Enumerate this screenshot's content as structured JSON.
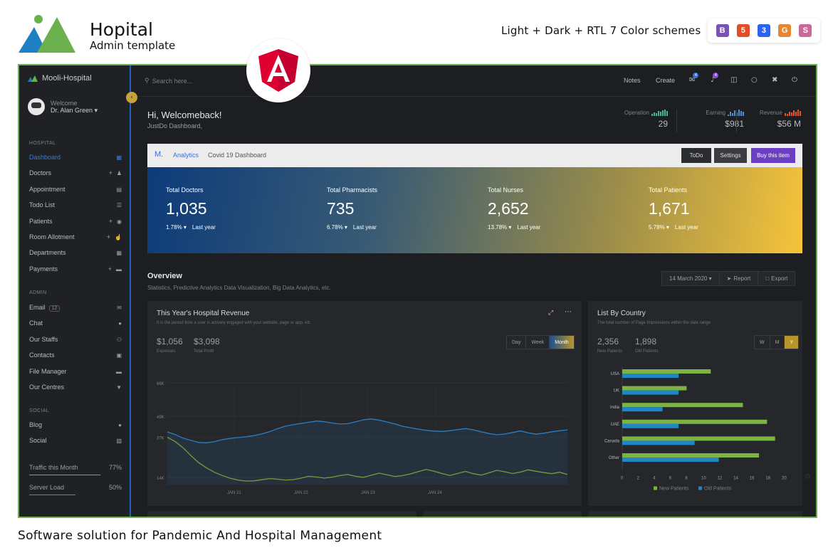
{
  "promo": {
    "brand_title": "Hopital",
    "brand_subtitle": "Admin template",
    "tagline": "Light + Dark + RTL 7 Color schemes",
    "tech_icons": [
      {
        "name": "bootstrap-icon",
        "glyph": "B",
        "color": "#7952b3"
      },
      {
        "name": "html5-icon",
        "glyph": "5",
        "color": "#e44d26"
      },
      {
        "name": "css3-icon",
        "glyph": "3",
        "color": "#2965f1"
      },
      {
        "name": "grunt-icon",
        "glyph": "G",
        "color": "#e48632"
      },
      {
        "name": "sass-icon",
        "glyph": "S",
        "color": "#cd6799"
      }
    ],
    "footer_text": "Software solution for Pandemic And Hospital Management"
  },
  "sidebar": {
    "brand": "Mooli-Hospital",
    "welcome_label": "Welcome",
    "user_name": "Dr. Alan Green ▾",
    "sections": {
      "hospital": "HOSPITAL",
      "admin": "ADMIN",
      "social": "SOCIAL"
    },
    "hospital_items": [
      {
        "label": "Dashboard",
        "icon": "dashboard-icon",
        "plus": false,
        "active": true
      },
      {
        "label": "Doctors",
        "icon": "doctor-icon",
        "plus": true,
        "active": false
      },
      {
        "label": "Appointment",
        "icon": "calendar-icon",
        "plus": false,
        "active": false
      },
      {
        "label": "Todo List",
        "icon": "list-icon",
        "plus": false,
        "active": false
      },
      {
        "label": "Patients",
        "icon": "user-circle-icon",
        "plus": true,
        "active": false
      },
      {
        "label": "Room Allotment",
        "icon": "thumbs-up-icon",
        "plus": true,
        "active": false
      },
      {
        "label": "Departments",
        "icon": "table-icon",
        "plus": false,
        "active": false
      },
      {
        "label": "Payments",
        "icon": "card-icon",
        "plus": true,
        "active": false
      }
    ],
    "admin_items": [
      {
        "label": "Email",
        "badge": "12",
        "icon": "mail-icon"
      },
      {
        "label": "Chat",
        "icon": "chat-icon"
      },
      {
        "label": "Our Staffs",
        "icon": "users-icon"
      },
      {
        "label": "Contacts",
        "icon": "contact-icon"
      },
      {
        "label": "File Manager",
        "icon": "folder-icon"
      },
      {
        "label": "Our Centres",
        "icon": "map-pin-icon"
      }
    ],
    "social_items": [
      {
        "label": "Blog",
        "icon": "globe-icon"
      },
      {
        "label": "Social",
        "icon": "share-icon"
      }
    ],
    "stats": [
      {
        "label": "Traffic this Month",
        "value": "77%",
        "percent": 77,
        "color": "#6ab04c"
      },
      {
        "label": "Server Load",
        "value": "50%",
        "percent": 50,
        "color": "#e4572e"
      }
    ]
  },
  "topbar": {
    "search_placeholder": "Search here...",
    "notes": "Notes",
    "create": "Create",
    "mail_badge": "4",
    "bell_badge": "4"
  },
  "greeting": {
    "title": "Hi, Welcomeback!",
    "subtitle": "JustDo Dashboard,"
  },
  "kpis": [
    {
      "label": "Operation",
      "value": "29",
      "color": "#4ab39d"
    },
    {
      "label": "Earning",
      "value": "$981",
      "color": "#4a90d9"
    },
    {
      "label": "Revenue",
      "value": "$56 M",
      "color": "#e4572e"
    }
  ],
  "hero": {
    "logo": "M.",
    "tab_active": "Analytics",
    "tab_other": "Covid 19 Dashboard",
    "btn_todo": "ToDo",
    "btn_settings": "Settings",
    "btn_buy": "Buy this item",
    "totals": [
      {
        "label": "Total Doctors",
        "value": "1,035",
        "change": "1.78% ▾",
        "period": "Last year"
      },
      {
        "label": "Total Pharmacists",
        "value": "735",
        "change": "6.78% ▾",
        "period": "Last year"
      },
      {
        "label": "Total Nurses",
        "value": "2,652",
        "change": "13.78% ▾",
        "period": "Last year"
      },
      {
        "label": "Total Patients",
        "value": "1,671",
        "change": "5.78% ▾",
        "period": "Last year"
      }
    ]
  },
  "overview": {
    "title": "Overview",
    "subtitle": "Statistics, Predictive Analytics Data Visualization, Big Data Analytics, etc.",
    "date_btn": "14 March 2020 ▾",
    "report_btn": "Report",
    "export_btn": "Export"
  },
  "revenue_card": {
    "title": "This Year's Hospital Revenue",
    "subtitle": "It is the period time a user is actively engaged with your website, page or app, etc",
    "expenses_value": "$1,056",
    "expenses_label": "Expenses",
    "profit_value": "$3,098",
    "profit_label": "Total Profit",
    "seg": [
      "Day",
      "Week",
      "Month"
    ]
  },
  "country_card": {
    "title": "List By Country",
    "subtitle": "The total number of Page Impressions within the date range",
    "new_value": "2,356",
    "new_label": "New Patients",
    "old_value": "1,898",
    "old_label": "Old Patients",
    "seg": [
      "W",
      "M",
      "Y"
    ]
  },
  "chart_data": [
    {
      "type": "line",
      "ylim": [
        10000,
        68000
      ],
      "yticks": [
        "68K",
        "49K",
        "37K",
        "14K"
      ],
      "xticks": [
        "JAN 21",
        "JAN 22",
        "JAN 23",
        "JAN 24"
      ],
      "series": [
        {
          "color": "#2b7fc4",
          "values": [
            40000,
            38500,
            36500,
            35200,
            34000,
            33800,
            34500,
            35600,
            36300,
            36800,
            37200,
            37900,
            38800,
            40100,
            41800,
            43200,
            44100,
            44800,
            45500,
            46200,
            45800,
            45100,
            44500,
            44700,
            45800,
            46900,
            47400,
            46700,
            45700,
            44600,
            43200,
            42400,
            41600,
            40900,
            40500,
            40300,
            40700,
            41300,
            41900,
            41200,
            40100,
            39100,
            38400,
            38800,
            39700,
            40600,
            39500,
            38700,
            39300,
            40100,
            40700,
            41200
          ]
        },
        {
          "color": "#7a9b3a",
          "values": [
            37000,
            34500,
            31000,
            26500,
            22500,
            19500,
            17000,
            15200,
            13600,
            12600,
            12000,
            12100,
            12700,
            13400,
            13100,
            12600,
            12800,
            13600,
            14700,
            14300,
            13700,
            14200,
            15100,
            15700,
            14700,
            14100,
            15300,
            16500,
            15600,
            14600,
            15100,
            16100,
            17400,
            18600,
            17600,
            16300,
            15200,
            16300,
            17500,
            16200,
            15400,
            16700,
            18100,
            17300,
            16300,
            17100,
            18400,
            17600,
            16800,
            16200,
            17000,
            15800
          ]
        }
      ]
    },
    {
      "type": "bar",
      "categories": [
        "USA",
        "UK",
        "India",
        "UAE",
        "Canada",
        "Other"
      ],
      "xlim": [
        0,
        20
      ],
      "xticks": [
        0,
        2,
        4,
        6,
        8,
        10,
        12,
        14,
        16,
        18,
        20
      ],
      "legend": "bottom",
      "series": [
        {
          "name": "New Patients",
          "color": "#7cb342",
          "values": [
            11,
            8,
            15,
            18,
            19,
            17
          ]
        },
        {
          "name": "Old Patients",
          "color": "#1e88c7",
          "values": [
            7,
            7,
            5,
            7,
            9,
            12
          ]
        }
      ]
    }
  ]
}
